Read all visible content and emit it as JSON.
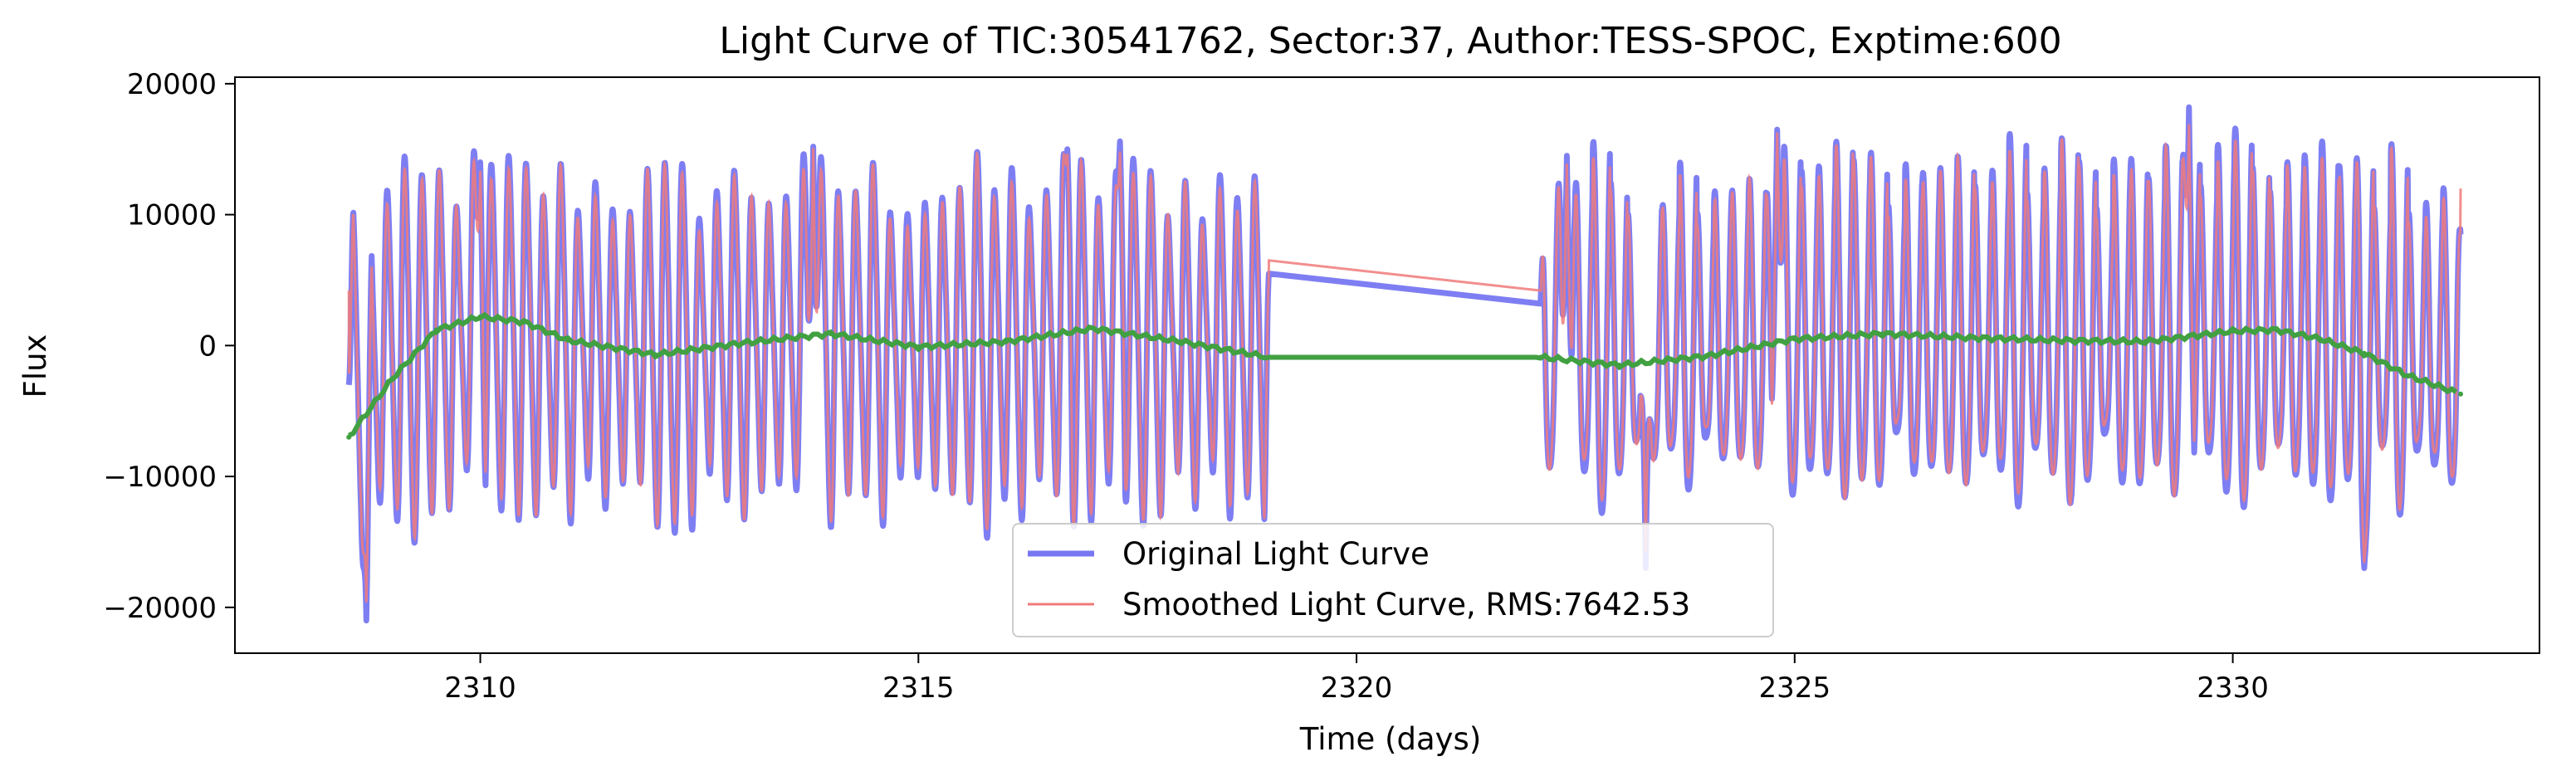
{
  "chart_data": {
    "type": "line",
    "title": "Light Curve of TIC:30541762, Sector:37, Author:TESS-SPOC, Exptime:600",
    "xlabel": "Time (days)",
    "ylabel": "Flux",
    "xlim": [
      2307.2,
      2333.5
    ],
    "ylim": [
      -23500,
      20500
    ],
    "xticks": [
      2310,
      2315,
      2320,
      2325,
      2330
    ],
    "xtick_labels": [
      "2310",
      "2315",
      "2320",
      "2325",
      "2330"
    ],
    "yticks": [
      -20000,
      -10000,
      0,
      10000,
      20000
    ],
    "ytick_labels": [
      "−20000",
      "−10000",
      "0",
      "10000",
      "20000"
    ],
    "grid": false,
    "legend_position": "bottom-center",
    "data_gap": [
      2319.0,
      2322.1
    ],
    "series": [
      {
        "name": "Original Light Curve",
        "role": "original",
        "color": "#7777f2",
        "segments": [
          {
            "t_start": 2308.5,
            "t_end": 2319.0,
            "first_y": -3000,
            "last_y": 5500
          },
          {
            "t_start": 2322.1,
            "t_end": 2332.6,
            "first_y": 3200,
            "last_y": 8500
          }
        ],
        "peaks": [
          {
            "x": 2308.7,
            "y": -21000
          },
          {
            "x": 2310.0,
            "y": 14000
          },
          {
            "x": 2313.8,
            "y": 15200
          },
          {
            "x": 2316.7,
            "y": 15000
          },
          {
            "x": 2317.3,
            "y": 15600
          },
          {
            "x": 2322.4,
            "y": 14500
          },
          {
            "x": 2323.3,
            "y": -17000
          },
          {
            "x": 2324.8,
            "y": 16500
          },
          {
            "x": 2329.5,
            "y": 18200
          },
          {
            "x": 2331.5,
            "y": -17000
          }
        ]
      },
      {
        "name": "Smoothed Light Curve, RMS:7642.53",
        "role": "smoothed",
        "color": "#f07a7a",
        "segments": [
          {
            "t_start": 2308.5,
            "t_end": 2319.0,
            "first_y": 4200,
            "last_y": 6500
          },
          {
            "t_start": 2322.1,
            "t_end": 2332.6,
            "first_y": 4200,
            "last_y": 12000
          }
        ]
      },
      {
        "role": "trend",
        "color": "#41a041",
        "points": [
          {
            "x": 2308.5,
            "y": -7000
          },
          {
            "x": 2309.0,
            "y": -2500
          },
          {
            "x": 2309.5,
            "y": 1200
          },
          {
            "x": 2310.0,
            "y": 2200
          },
          {
            "x": 2310.5,
            "y": 1800
          },
          {
            "x": 2311.0,
            "y": 400
          },
          {
            "x": 2312.0,
            "y": -700
          },
          {
            "x": 2313.0,
            "y": 200
          },
          {
            "x": 2314.0,
            "y": 900
          },
          {
            "x": 2315.0,
            "y": -100
          },
          {
            "x": 2316.0,
            "y": 300
          },
          {
            "x": 2317.0,
            "y": 1300
          },
          {
            "x": 2318.0,
            "y": 300
          },
          {
            "x": 2319.0,
            "y": -900
          },
          {
            "x": 2322.1,
            "y": -900
          },
          {
            "x": 2323.0,
            "y": -1500
          },
          {
            "x": 2324.0,
            "y": -800
          },
          {
            "x": 2325.0,
            "y": 500
          },
          {
            "x": 2326.0,
            "y": 900
          },
          {
            "x": 2327.0,
            "y": 600
          },
          {
            "x": 2328.0,
            "y": 400
          },
          {
            "x": 2329.0,
            "y": 300
          },
          {
            "x": 2330.0,
            "y": 1100
          },
          {
            "x": 2330.5,
            "y": 1200
          },
          {
            "x": 2331.0,
            "y": 500
          },
          {
            "x": 2331.5,
            "y": -600
          },
          {
            "x": 2332.0,
            "y": -2300
          },
          {
            "x": 2332.6,
            "y": -3700
          }
        ]
      }
    ]
  }
}
